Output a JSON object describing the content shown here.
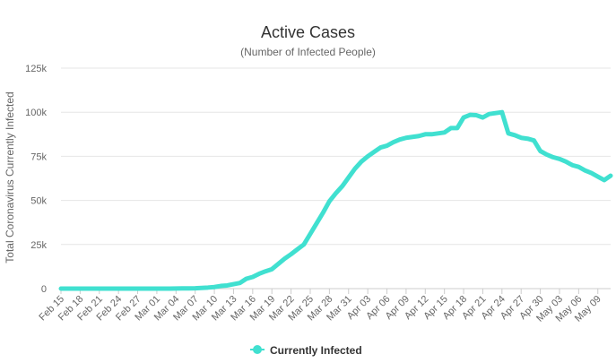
{
  "chart_data": {
    "type": "line",
    "title": "Active Cases",
    "subtitle": "(Number of Infected People)",
    "ylabel": "Total Coronavirus Currently Infected",
    "xlabel": "",
    "ylim": [
      0,
      125000
    ],
    "y_ticks": [
      {
        "value": 0,
        "label": "0"
      },
      {
        "value": 25000,
        "label": "25k"
      },
      {
        "value": 50000,
        "label": "50k"
      },
      {
        "value": 75000,
        "label": "75k"
      },
      {
        "value": 100000,
        "label": "100k"
      },
      {
        "value": 125000,
        "label": "125k"
      }
    ],
    "x_tick_labels": [
      "Feb 15",
      "Feb 18",
      "Feb 21",
      "Feb 24",
      "Feb 27",
      "Mar 01",
      "Mar 04",
      "Mar 07",
      "Mar 10",
      "Mar 13",
      "Mar 16",
      "Mar 19",
      "Mar 22",
      "Mar 25",
      "Mar 28",
      "Mar 31",
      "Apr 03",
      "Apr 06",
      "Apr 09",
      "Apr 12",
      "Apr 15",
      "Apr 18",
      "Apr 21",
      "Apr 24",
      "Apr 27",
      "Apr 30",
      "May 03",
      "May 06",
      "May 09"
    ],
    "x_tick_every": 3,
    "grid": true,
    "legend_position": "bottom-center",
    "series": [
      {
        "name": "Currently Infected",
        "color": "#40e0d0",
        "values": [
          3,
          3,
          3,
          3,
          3,
          3,
          3,
          3,
          3,
          3,
          3,
          3,
          3,
          3,
          3,
          5,
          20,
          20,
          50,
          100,
          150,
          200,
          400,
          600,
          900,
          1500,
          1800,
          2500,
          3200,
          5600,
          6600,
          8400,
          9800,
          11000,
          14000,
          17000,
          19500,
          22300,
          25000,
          31000,
          37000,
          43000,
          49500,
          54000,
          58000,
          63000,
          68000,
          72000,
          75000,
          77500,
          80000,
          81000,
          83000,
          84500,
          85500,
          86000,
          86500,
          87500,
          87500,
          88000,
          88500,
          91000,
          91000,
          97000,
          98500,
          98300,
          97000,
          99000,
          99500,
          100000,
          88000,
          87000,
          85500,
          85000,
          84000,
          78000,
          76000,
          74500,
          73500,
          72000,
          70000,
          69000,
          67000,
          65500,
          63500,
          61500,
          64000
        ]
      }
    ]
  }
}
